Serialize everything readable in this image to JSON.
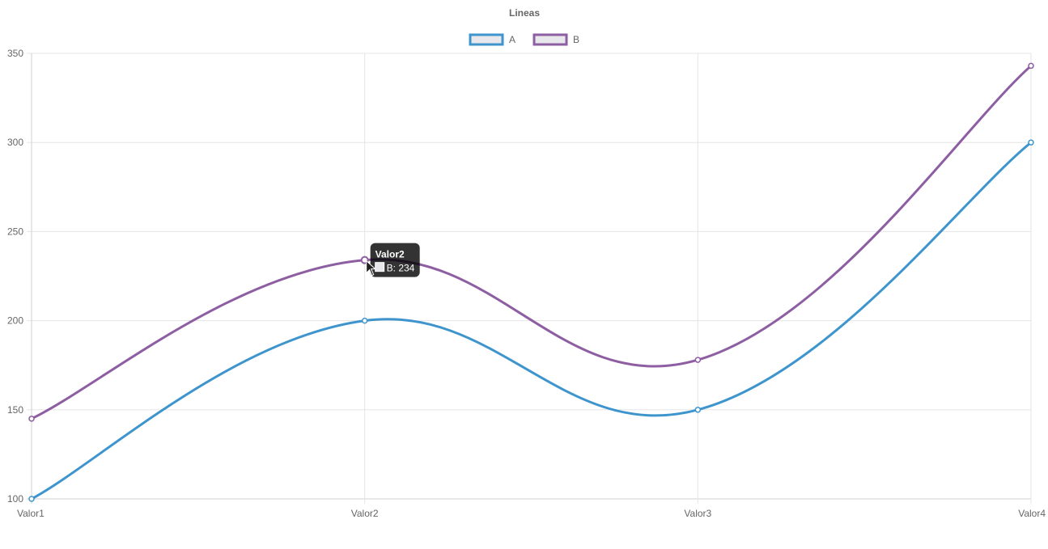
{
  "chart_data": {
    "type": "line",
    "title": "Lineas",
    "categories": [
      "Valor1",
      "Valor2",
      "Valor3",
      "Valor4"
    ],
    "series": [
      {
        "name": "A",
        "values": [
          100,
          200,
          150,
          300
        ],
        "color": "#3e95cd"
      },
      {
        "name": "B",
        "values": [
          145,
          234,
          178,
          343
        ],
        "color": "#8e5ea2"
      }
    ],
    "ylim": [
      100,
      350
    ],
    "yticks": [
      100,
      150,
      200,
      250,
      300,
      350
    ],
    "grid": true,
    "legend_position": "top",
    "legend_fill": "#e8e8ec",
    "tooltip": {
      "title": "Valor2",
      "label": "B: 234",
      "series_index": 1,
      "category_index": 1
    }
  }
}
